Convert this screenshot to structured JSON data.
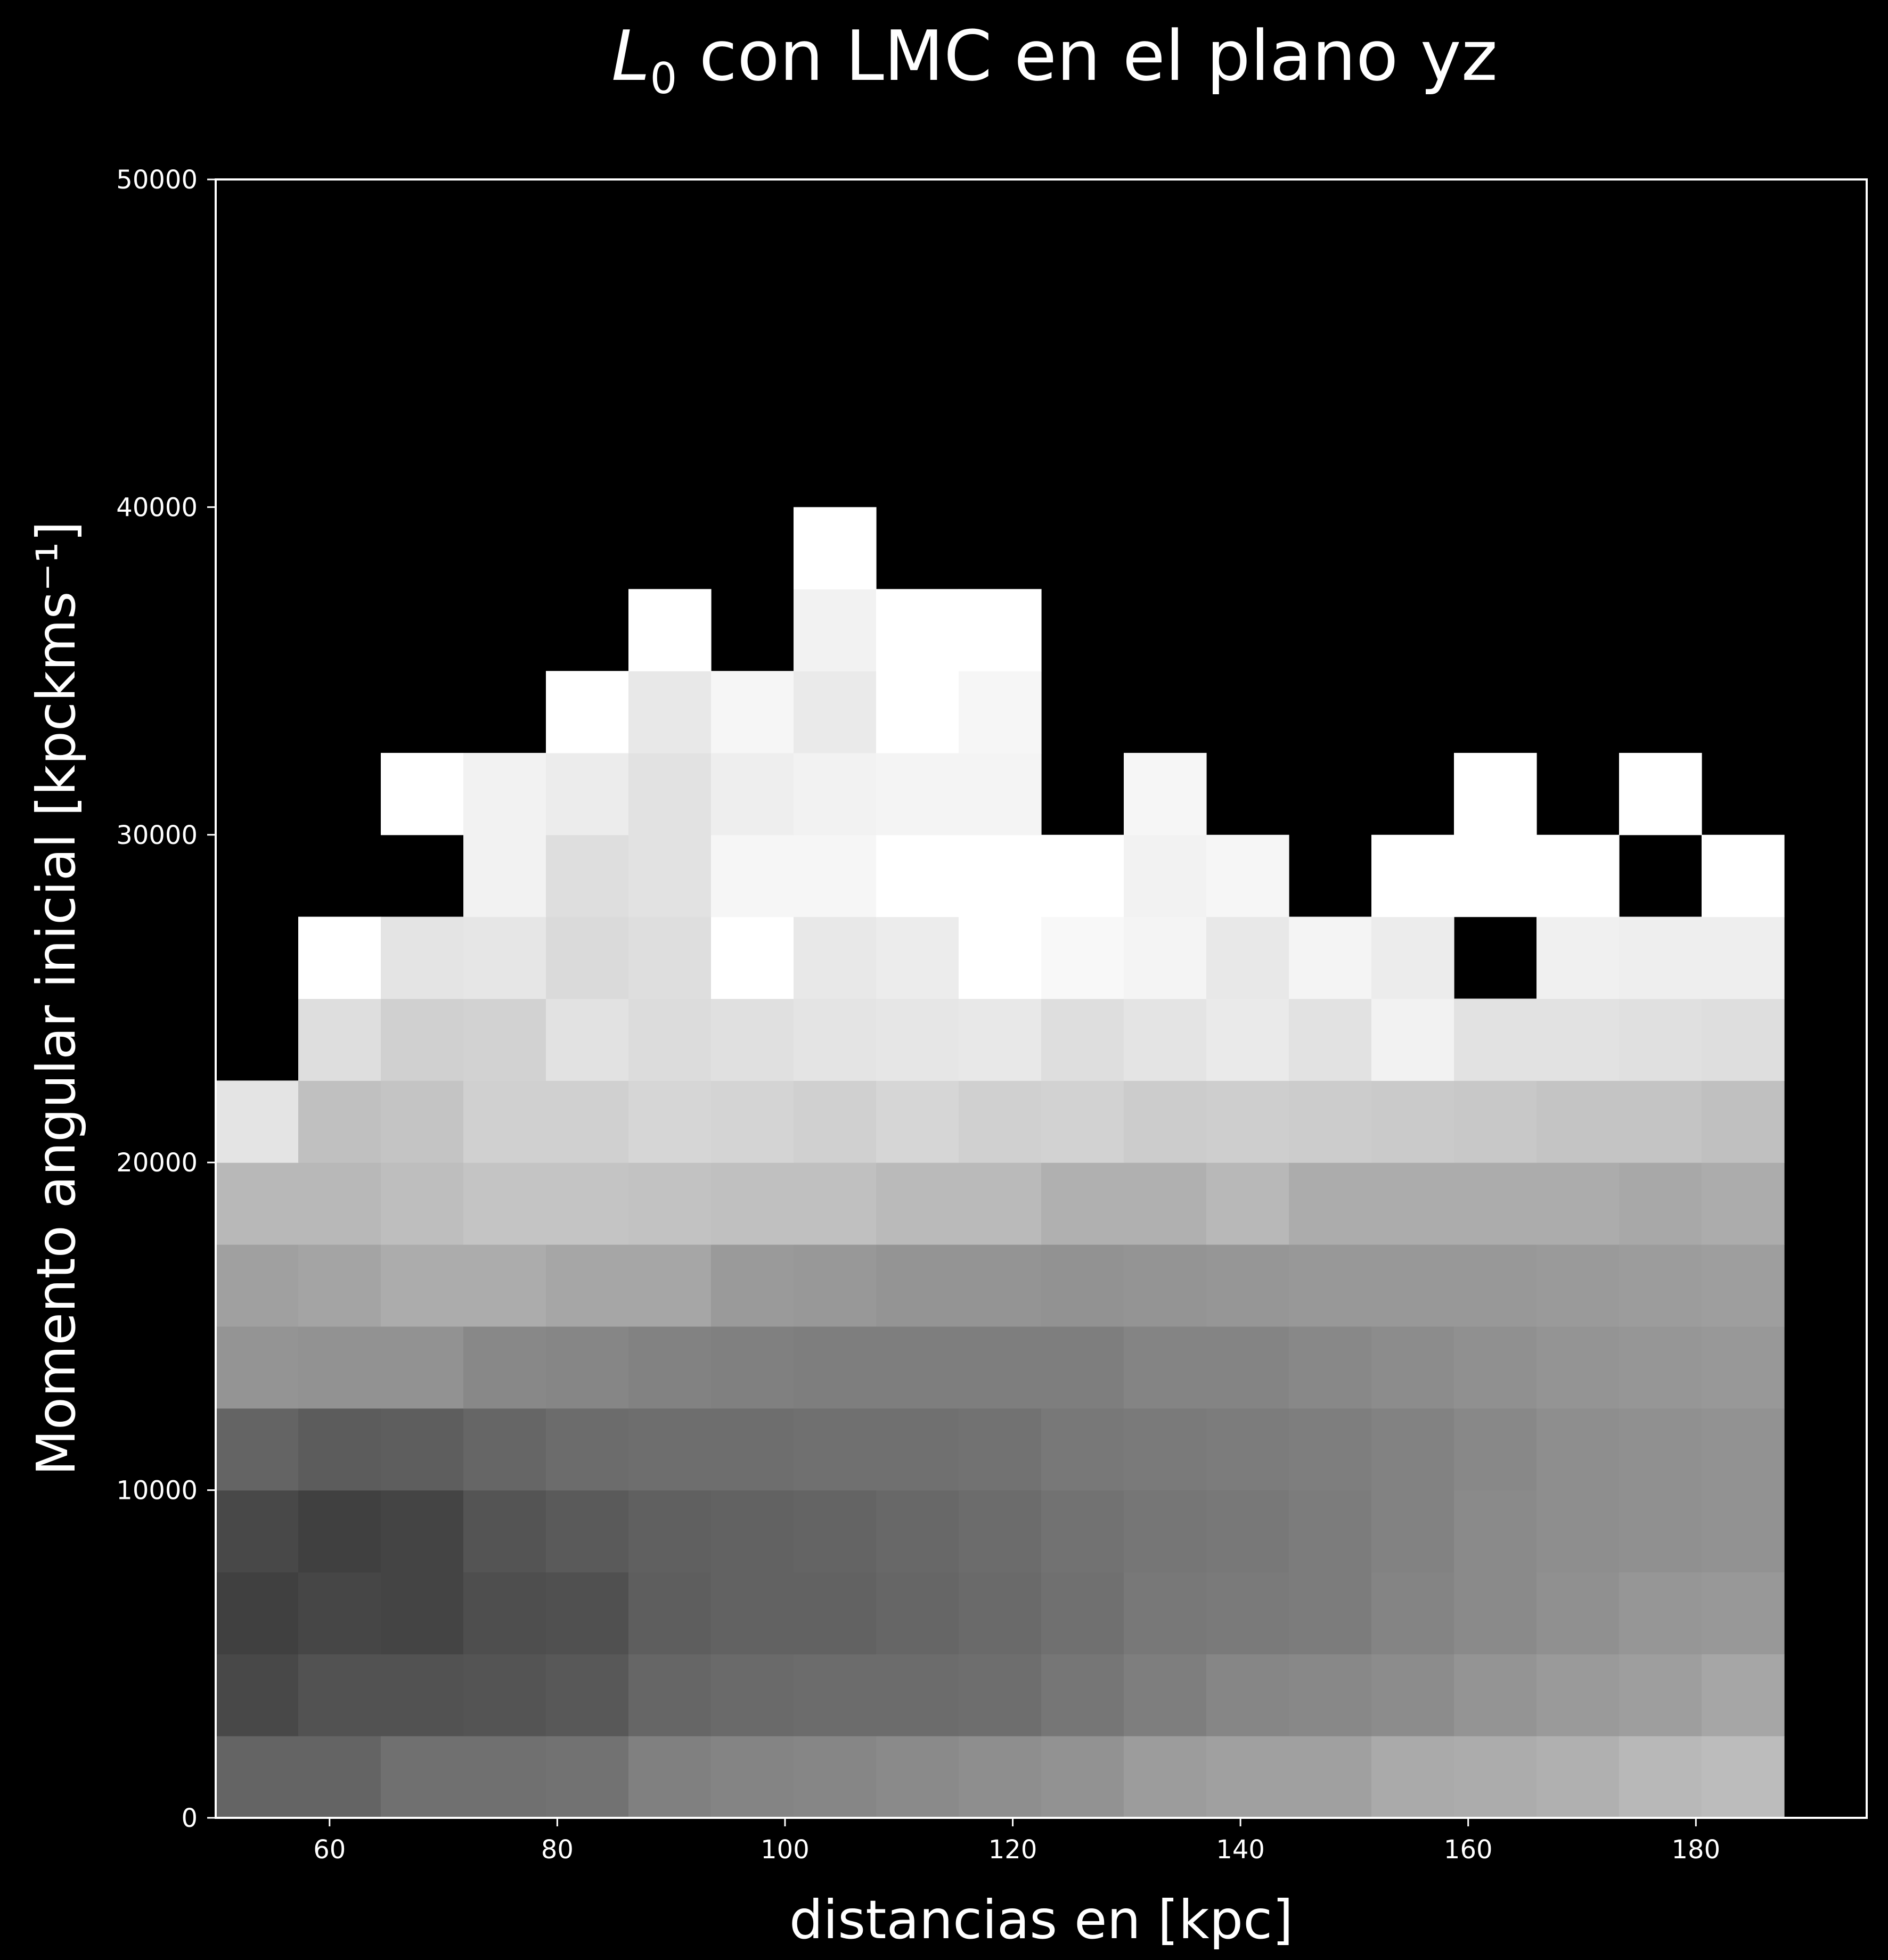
{
  "chart_data": {
    "type": "heatmap",
    "title": "L₀ con LMC en el plano yz",
    "title_parts": {
      "symbol": "L",
      "subscript": "0",
      "rest": " con LMC en el plano yz"
    },
    "xlabel": "distancias en [kpc]",
    "ylabel": "Momento angular inicial [kpckms⁻¹]",
    "xlim": [
      50,
      195
    ],
    "ylim": [
      0,
      50000
    ],
    "xticks": [
      "60",
      "80",
      "100",
      "120",
      "140",
      "160",
      "180"
    ],
    "yticks": [
      "0",
      "10000",
      "20000",
      "30000",
      "40000",
      "50000"
    ],
    "grid": false,
    "legend": "none",
    "colormap": "grayscale",
    "background_color": "#000000",
    "foreground_color": "#ffffff",
    "x_bin_edges": [
      50.0,
      57.25,
      64.5,
      71.75,
      79.0,
      86.25,
      93.5,
      100.75,
      108.0,
      115.25,
      122.5,
      129.75,
      137.0,
      144.25,
      151.5,
      158.75,
      166.0,
      173.25,
      180.5,
      187.75
    ],
    "y_bin_edges": [
      0,
      2500,
      5000,
      7500,
      10000,
      12500,
      15000,
      17500,
      20000,
      22500,
      25000,
      27500,
      30000,
      32500,
      35000,
      37500,
      40000
    ],
    "value_scale": "gray level 0-255, row 0 = lowest y bin, null = empty (background)",
    "values": [
      [
        100,
        100,
        112,
        112,
        114,
        128,
        132,
        134,
        138,
        142,
        146,
        156,
        160,
        160,
        170,
        172,
        176,
        184,
        188
      ],
      [
        72,
        82,
        82,
        84,
        88,
        102,
        106,
        108,
        108,
        110,
        118,
        126,
        134,
        136,
        140,
        148,
        154,
        158,
        166
      ],
      [
        64,
        70,
        68,
        78,
        80,
        94,
        98,
        98,
        102,
        106,
        112,
        120,
        122,
        124,
        132,
        138,
        144,
        150,
        152
      ],
      [
        72,
        64,
        68,
        84,
        90,
        96,
        98,
        100,
        104,
        108,
        114,
        118,
        120,
        124,
        130,
        138,
        142,
        144,
        146
      ],
      [
        100,
        92,
        94,
        102,
        108,
        110,
        110,
        112,
        112,
        114,
        120,
        122,
        124,
        126,
        130,
        136,
        142,
        144,
        146
      ],
      [
        148,
        146,
        146,
        136,
        134,
        130,
        128,
        126,
        126,
        126,
        126,
        132,
        132,
        136,
        140,
        144,
        148,
        150,
        152
      ],
      [
        160,
        164,
        172,
        172,
        166,
        166,
        154,
        152,
        148,
        148,
        146,
        148,
        150,
        152,
        152,
        152,
        154,
        156,
        158
      ],
      [
        184,
        184,
        190,
        196,
        196,
        194,
        192,
        192,
        186,
        186,
        176,
        176,
        184,
        172,
        172,
        172,
        172,
        168,
        172
      ],
      [
        228,
        192,
        196,
        208,
        208,
        214,
        212,
        208,
        214,
        208,
        210,
        204,
        206,
        204,
        202,
        200,
        196,
        196,
        192
      ],
      [
        null,
        222,
        208,
        210,
        226,
        220,
        224,
        228,
        230,
        232,
        222,
        228,
        234,
        226,
        242,
        226,
        226,
        224,
        222
      ],
      [
        null,
        255,
        228,
        230,
        218,
        222,
        255,
        232,
        236,
        255,
        248,
        244,
        232,
        244,
        236,
        null,
        240,
        238,
        238
      ],
      [
        null,
        null,
        null,
        242,
        222,
        226,
        246,
        246,
        255,
        255,
        255,
        242,
        246,
        null,
        255,
        255,
        255,
        null,
        255
      ],
      [
        null,
        null,
        255,
        242,
        236,
        226,
        238,
        242,
        244,
        244,
        null,
        246,
        null,
        null,
        null,
        255,
        null,
        255,
        null
      ],
      [
        null,
        null,
        null,
        null,
        255,
        232,
        246,
        234,
        255,
        246,
        null,
        null,
        null,
        null,
        null,
        null,
        null,
        null,
        null
      ],
      [
        null,
        null,
        null,
        null,
        null,
        255,
        null,
        242,
        255,
        255,
        null,
        null,
        null,
        null,
        null,
        null,
        null,
        null,
        null
      ],
      [
        null,
        null,
        null,
        null,
        null,
        null,
        null,
        255,
        null,
        null,
        null,
        null,
        null,
        null,
        null,
        null,
        null,
        null,
        null
      ]
    ]
  }
}
